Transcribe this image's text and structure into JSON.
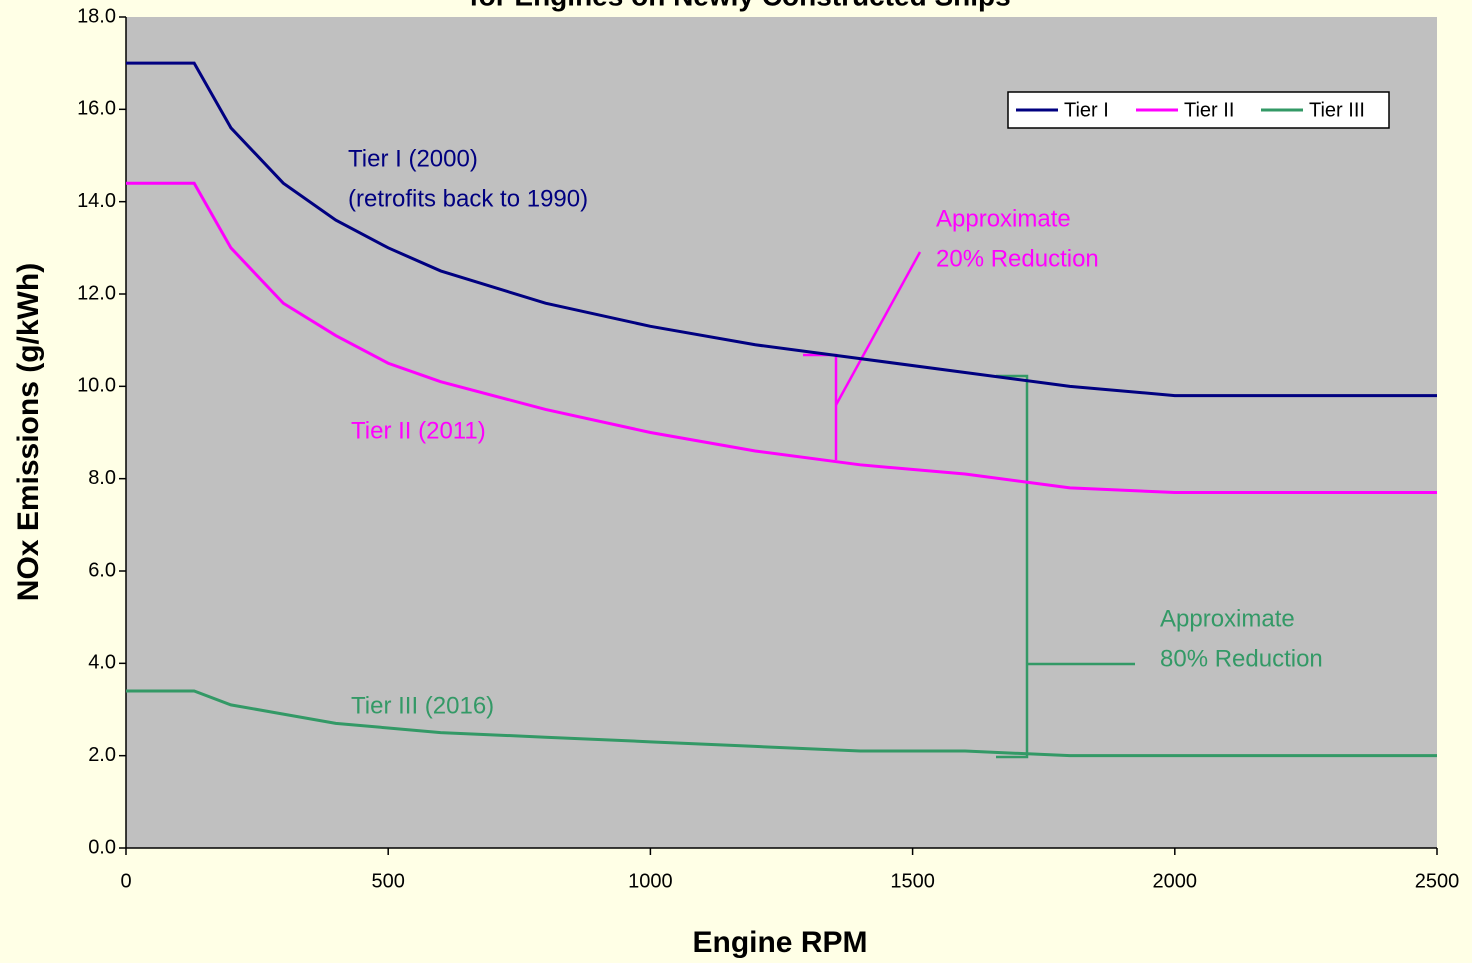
{
  "chart_data": {
    "type": "line",
    "title": "for Engines on Newly Constructed Ships",
    "x_label": "Engine RPM",
    "y_label": "NOx Emissions (g/kWh)",
    "x": [
      0,
      130,
      200,
      300,
      400,
      500,
      600,
      800,
      1000,
      1200,
      1400,
      1600,
      1800,
      2000,
      2500
    ],
    "series": [
      {
        "name": "Tier I",
        "color": "#000080",
        "values": [
          17.0,
          17.0,
          15.6,
          14.4,
          13.6,
          13.0,
          12.5,
          11.8,
          11.3,
          10.9,
          10.6,
          10.3,
          10.0,
          9.8,
          9.8
        ]
      },
      {
        "name": "Tier II",
        "color": "#ff00ff",
        "values": [
          14.4,
          14.4,
          13.0,
          11.8,
          11.1,
          10.5,
          10.1,
          9.5,
          9.0,
          8.6,
          8.3,
          8.1,
          7.8,
          7.7,
          7.7
        ]
      },
      {
        "name": "Tier III",
        "color": "#339966",
        "values": [
          3.4,
          3.4,
          3.1,
          2.9,
          2.7,
          2.6,
          2.5,
          2.4,
          2.3,
          2.2,
          2.1,
          2.1,
          2.0,
          2.0,
          2.0
        ]
      }
    ],
    "xlim": [
      0,
      2500
    ],
    "xticks": [
      0,
      500,
      1000,
      1500,
      2000,
      2500
    ],
    "ylim": [
      0,
      18
    ],
    "yticks": [
      {
        "value": 0,
        "label": "0.0"
      },
      {
        "value": 2,
        "label": "2.0"
      },
      {
        "value": 4,
        "label": "4.0"
      },
      {
        "value": 6,
        "label": "6.0"
      },
      {
        "value": 8,
        "label": "8.0"
      },
      {
        "value": 10,
        "label": "10.0"
      },
      {
        "value": 12,
        "label": "12.0"
      },
      {
        "value": 14,
        "label": "14.0"
      },
      {
        "value": 16,
        "label": "16.0"
      },
      {
        "value": 18,
        "label": "18.0"
      }
    ],
    "legend": "top-right",
    "annotations": [
      {
        "text": "Tier I (2000)",
        "color": "#000080"
      },
      {
        "text": "(retrofits back to 1990)",
        "color": "#000080"
      },
      {
        "text": "Approximate",
        "color": "#ff00ff"
      },
      {
        "text": "20% Reduction",
        "color": "#ff00ff"
      },
      {
        "text": "Tier II (2011)",
        "color": "#ff00ff"
      },
      {
        "text": "Approximate",
        "color": "#339966"
      },
      {
        "text": "80% Reduction",
        "color": "#339966"
      },
      {
        "text": "Tier III (2016)",
        "color": "#339966"
      }
    ]
  }
}
